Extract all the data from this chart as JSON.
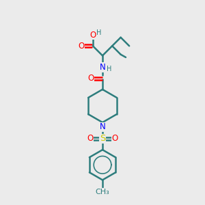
{
  "bg_color": "#ebebeb",
  "bond_color": "#2d7d7d",
  "N_color": "#0000ff",
  "O_color": "#ff0000",
  "S_color": "#cccc00",
  "line_width": 1.8,
  "font_size": 8.5,
  "fig_size": [
    3.0,
    3.0
  ],
  "dpi": 100,
  "xlim": [
    0,
    10
  ],
  "ylim": [
    0,
    10
  ]
}
